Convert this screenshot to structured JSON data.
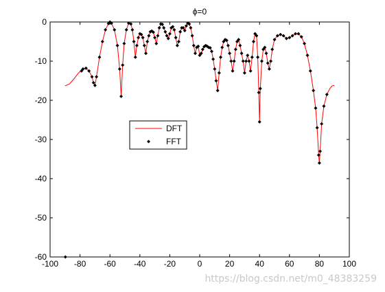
{
  "watermark": "https://blog.csdn.net/m0_48383259",
  "chart_data": {
    "type": "line",
    "title": "ϕ=0",
    "xlabel": "",
    "ylabel": "",
    "xlim": [
      -100,
      100
    ],
    "ylim": [
      -60,
      0
    ],
    "xticks": [
      -100,
      -80,
      -60,
      -40,
      -20,
      0,
      20,
      40,
      60,
      80,
      100
    ],
    "yticks": [
      0,
      -10,
      -20,
      -30,
      -40,
      -50,
      -60
    ],
    "grid": false,
    "legend": {
      "position": "middle-left",
      "entries": [
        "DFT",
        "FFT"
      ]
    },
    "series": [
      {
        "name": "DFT",
        "style": "line",
        "color": "#ff0000",
        "points": [
          [
            -90,
            -16.3
          ],
          [
            -87,
            -15.8
          ],
          [
            -84,
            -14.5
          ],
          [
            -81,
            -13
          ],
          [
            -78,
            -12
          ],
          [
            -76,
            -11.8
          ],
          [
            -74,
            -12.5
          ],
          [
            -72,
            -14
          ],
          [
            -71,
            -15.5
          ],
          [
            -70,
            -16.2
          ],
          [
            -69,
            -14
          ],
          [
            -67,
            -9
          ],
          [
            -65,
            -5
          ],
          [
            -63,
            -2
          ],
          [
            -61,
            -0.4
          ],
          [
            -60,
            0
          ],
          [
            -59,
            -0.3
          ],
          [
            -57,
            -2
          ],
          [
            -55,
            -6
          ],
          [
            -53.5,
            -12
          ],
          [
            -52.5,
            -19
          ],
          [
            -51.5,
            -11
          ],
          [
            -50.5,
            -5.5
          ],
          [
            -49,
            -2
          ],
          [
            -47.5,
            -0.3
          ],
          [
            -46,
            -0.5
          ],
          [
            -45,
            -2
          ],
          [
            -44,
            -5
          ],
          [
            -43,
            -9
          ],
          [
            -42,
            -6
          ],
          [
            -41,
            -4
          ],
          [
            -40,
            -3
          ],
          [
            -39,
            -3.2
          ],
          [
            -38,
            -4
          ],
          [
            -37,
            -6
          ],
          [
            -36,
            -8
          ],
          [
            -35,
            -5
          ],
          [
            -34,
            -3.5
          ],
          [
            -33,
            -2.5
          ],
          [
            -32,
            -2.3
          ],
          [
            -31,
            -2.6
          ],
          [
            -30,
            -4
          ],
          [
            -29,
            -5.5
          ],
          [
            -28,
            -3.5
          ],
          [
            -27,
            -1.5
          ],
          [
            -26,
            -0.5
          ],
          [
            -25,
            -0.6
          ],
          [
            -24,
            -1.5
          ],
          [
            -23,
            -2.5
          ],
          [
            -22,
            -3.5
          ],
          [
            -21,
            -4.2
          ],
          [
            -20,
            -3
          ],
          [
            -19,
            -1.5
          ],
          [
            -18,
            -1.2
          ],
          [
            -17,
            -2
          ],
          [
            -16,
            -4
          ],
          [
            -15,
            -6
          ],
          [
            -14,
            -5
          ],
          [
            -13,
            -2.5
          ],
          [
            -12,
            -1.5
          ],
          [
            -11,
            -1.5
          ],
          [
            -10,
            -2.2
          ],
          [
            -9,
            -1
          ],
          [
            -8,
            -0.3
          ],
          [
            -7,
            -0.5
          ],
          [
            -6,
            -1.5
          ],
          [
            -5,
            -3.5
          ],
          [
            -4,
            -6
          ],
          [
            -3,
            -8
          ],
          [
            -2,
            -6.5
          ],
          [
            -1,
            -6.2
          ],
          [
            0,
            -8.5
          ],
          [
            1,
            -8
          ],
          [
            2,
            -7
          ],
          [
            3,
            -6.3
          ],
          [
            4,
            -6
          ],
          [
            5,
            -6.2
          ],
          [
            6,
            -6.5
          ],
          [
            7,
            -6.6
          ],
          [
            8,
            -7.5
          ],
          [
            9,
            -9.5
          ],
          [
            10,
            -12
          ],
          [
            11,
            -15
          ],
          [
            12,
            -17.5
          ],
          [
            13,
            -13
          ],
          [
            14,
            -9
          ],
          [
            15,
            -6.5
          ],
          [
            16,
            -5
          ],
          [
            17,
            -4.5
          ],
          [
            18,
            -4.7
          ],
          [
            19,
            -6
          ],
          [
            20,
            -8
          ],
          [
            21,
            -10
          ],
          [
            22,
            -12.5
          ],
          [
            23,
            -10
          ],
          [
            24,
            -7
          ],
          [
            25,
            -5
          ],
          [
            26,
            -4.5
          ],
          [
            27,
            -6
          ],
          [
            28,
            -8
          ],
          [
            29,
            -10
          ],
          [
            30,
            -13
          ],
          [
            31,
            -10
          ],
          [
            32,
            -8.5
          ],
          [
            33,
            -10
          ],
          [
            34,
            -12.5
          ],
          [
            35,
            -9
          ],
          [
            36,
            -5
          ],
          [
            37,
            -3
          ],
          [
            38,
            -3.5
          ],
          [
            38.8,
            -9
          ],
          [
            39.5,
            -18
          ],
          [
            40,
            -25.5
          ],
          [
            40.5,
            -17
          ],
          [
            41.5,
            -10
          ],
          [
            42.5,
            -7
          ],
          [
            43.5,
            -6.5
          ],
          [
            44.5,
            -8
          ],
          [
            45.5,
            -10.5
          ],
          [
            46.5,
            -12
          ],
          [
            47.5,
            -10
          ],
          [
            48.5,
            -7
          ],
          [
            50,
            -4.5
          ],
          [
            52,
            -3.5
          ],
          [
            54,
            -3.2
          ],
          [
            56,
            -3.5
          ],
          [
            58,
            -4.2
          ],
          [
            60,
            -4
          ],
          [
            62,
            -3.5
          ],
          [
            64,
            -3
          ],
          [
            66,
            -3
          ],
          [
            68,
            -3.8
          ],
          [
            70,
            -5.5
          ],
          [
            72,
            -8.5
          ],
          [
            74,
            -12.5
          ],
          [
            76,
            -17.5
          ],
          [
            77.5,
            -22
          ],
          [
            78.5,
            -27
          ],
          [
            79.5,
            -34
          ],
          [
            80,
            -36
          ],
          [
            80.5,
            -33
          ],
          [
            81.5,
            -26
          ],
          [
            83,
            -21.5
          ],
          [
            85,
            -18.5
          ],
          [
            87,
            -17
          ],
          [
            88.5,
            -16.3
          ],
          [
            90,
            -16.2
          ]
        ]
      },
      {
        "name": "FFT",
        "style": "markers",
        "color": "#000000",
        "points": [
          [
            -89.8,
            -60
          ],
          [
            -79,
            -12.5
          ],
          [
            -78,
            -12
          ],
          [
            -76,
            -11.8
          ],
          [
            -74,
            -12.5
          ],
          [
            -72,
            -14
          ],
          [
            -71,
            -15.5
          ],
          [
            -70,
            -16.2
          ],
          [
            -69,
            -14
          ],
          [
            -67,
            -9
          ],
          [
            -65,
            -5
          ],
          [
            -63,
            -2
          ],
          [
            -61,
            -0.4
          ],
          [
            -60,
            0
          ],
          [
            -59,
            -0.3
          ],
          [
            -57,
            -2
          ],
          [
            -55,
            -6
          ],
          [
            -53.5,
            -12
          ],
          [
            -52.5,
            -19
          ],
          [
            -51.5,
            -11
          ],
          [
            -50.5,
            -5.5
          ],
          [
            -49,
            -2
          ],
          [
            -47.5,
            -0.3
          ],
          [
            -46,
            -0.5
          ],
          [
            -45,
            -2
          ],
          [
            -44,
            -5
          ],
          [
            -43,
            -9
          ],
          [
            -42,
            -6
          ],
          [
            -41,
            -4
          ],
          [
            -40,
            -3
          ],
          [
            -39,
            -3.2
          ],
          [
            -38,
            -4
          ],
          [
            -37,
            -6
          ],
          [
            -36,
            -8
          ],
          [
            -35,
            -5
          ],
          [
            -34,
            -3.5
          ],
          [
            -33,
            -2.5
          ],
          [
            -32,
            -2.3
          ],
          [
            -31,
            -2.6
          ],
          [
            -30,
            -4
          ],
          [
            -29,
            -5.5
          ],
          [
            -28,
            -3.5
          ],
          [
            -27,
            -1.5
          ],
          [
            -26,
            -0.5
          ],
          [
            -25,
            -0.6
          ],
          [
            -24,
            -1.5
          ],
          [
            -23,
            -2.5
          ],
          [
            -22,
            -3.5
          ],
          [
            -21,
            -4.2
          ],
          [
            -20,
            -3
          ],
          [
            -19,
            -1.5
          ],
          [
            -18,
            -1.2
          ],
          [
            -17,
            -2
          ],
          [
            -16,
            -4
          ],
          [
            -15,
            -6
          ],
          [
            -14,
            -5
          ],
          [
            -13,
            -2.5
          ],
          [
            -12,
            -1.5
          ],
          [
            -11,
            -1.5
          ],
          [
            -10,
            -2.2
          ],
          [
            -9,
            -1
          ],
          [
            -8,
            -0.3
          ],
          [
            -7,
            -0.5
          ],
          [
            -6,
            -1.5
          ],
          [
            -5,
            -3.5
          ],
          [
            -4,
            -6
          ],
          [
            -3,
            -8
          ],
          [
            -2,
            -6.5
          ],
          [
            -1,
            -6.2
          ],
          [
            0,
            -8.5
          ],
          [
            1,
            -8
          ],
          [
            2,
            -7
          ],
          [
            3,
            -6.3
          ],
          [
            4,
            -6
          ],
          [
            5,
            -6.2
          ],
          [
            6,
            -6.5
          ],
          [
            7,
            -6.6
          ],
          [
            8,
            -7.5
          ],
          [
            9,
            -9.5
          ],
          [
            10,
            -12
          ],
          [
            11,
            -15
          ],
          [
            12,
            -17.5
          ],
          [
            13,
            -13
          ],
          [
            14,
            -9
          ],
          [
            15,
            -6.5
          ],
          [
            16,
            -5
          ],
          [
            17,
            -4.5
          ],
          [
            18,
            -4.7
          ],
          [
            19,
            -6
          ],
          [
            20,
            -8
          ],
          [
            21,
            -10
          ],
          [
            22,
            -12.5
          ],
          [
            23,
            -10
          ],
          [
            24,
            -7
          ],
          [
            25,
            -5
          ],
          [
            26,
            -4.5
          ],
          [
            27,
            -6
          ],
          [
            28,
            -8
          ],
          [
            29,
            -10
          ],
          [
            30,
            -13
          ],
          [
            31,
            -10
          ],
          [
            32,
            -8.5
          ],
          [
            33,
            -10
          ],
          [
            34,
            -12.5
          ],
          [
            35,
            -9
          ],
          [
            36,
            -5
          ],
          [
            37,
            -3
          ],
          [
            38,
            -3.5
          ],
          [
            38.8,
            -9
          ],
          [
            39.5,
            -18
          ],
          [
            40,
            -25.5
          ],
          [
            40.5,
            -17
          ],
          [
            41.5,
            -10
          ],
          [
            42.5,
            -7
          ],
          [
            43.5,
            -6.5
          ],
          [
            44.5,
            -8
          ],
          [
            45.5,
            -10.5
          ],
          [
            46.5,
            -12
          ],
          [
            47.5,
            -10
          ],
          [
            48.5,
            -7
          ],
          [
            50,
            -4.5
          ],
          [
            52,
            -3.5
          ],
          [
            54,
            -3.2
          ],
          [
            56,
            -3.5
          ],
          [
            58,
            -4.2
          ],
          [
            60,
            -4
          ],
          [
            62,
            -3.5
          ],
          [
            64,
            -3
          ],
          [
            66,
            -3
          ],
          [
            68,
            -3.8
          ],
          [
            70,
            -5.5
          ],
          [
            72,
            -8.5
          ],
          [
            74,
            -12.5
          ],
          [
            76,
            -17.5
          ],
          [
            77.5,
            -22
          ],
          [
            78.5,
            -27
          ],
          [
            79.5,
            -34
          ],
          [
            80,
            -36
          ],
          [
            80.5,
            -33
          ],
          [
            81.5,
            -26
          ],
          [
            83,
            -21.5
          ],
          [
            85,
            -18.5
          ]
        ]
      }
    ]
  }
}
